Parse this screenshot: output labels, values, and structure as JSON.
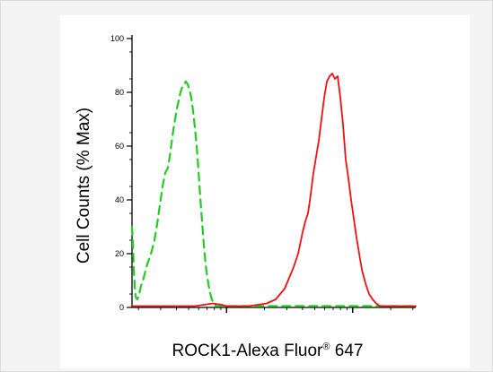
{
  "chart_data": {
    "type": "line",
    "title": "",
    "xlabel_main": "ROCK1-Alexa Fluor",
    "xlabel_reg": "®",
    "xlabel_tail": " 647",
    "ylabel": "Cell Counts (% Max)",
    "ylim": [
      0,
      100
    ],
    "yticks": [
      "0",
      "20",
      "40",
      "60",
      "80",
      "100"
    ],
    "x_scale": "log",
    "x_tick_labels": "none",
    "grid": false,
    "legend": "none",
    "series": [
      {
        "color": "#22cc22",
        "style": "dashed",
        "x": [
          0,
          1,
          2,
          3,
          4,
          6,
          8,
          10,
          13,
          16,
          19,
          22,
          25,
          28,
          31,
          34,
          37,
          40,
          42,
          44,
          46,
          48,
          50,
          52,
          54,
          56,
          58,
          60,
          62,
          64,
          66,
          68,
          70,
          72,
          74,
          76,
          78,
          80,
          82,
          84,
          86,
          88,
          90,
          92,
          94,
          96,
          98,
          100,
          103,
          106,
          110,
          115,
          120,
          130,
          140,
          150,
          200,
          250,
          300,
          316
        ],
        "y": [
          30,
          24,
          14,
          8,
          4,
          3,
          5,
          8,
          11,
          15,
          18,
          21,
          25,
          31,
          38,
          45,
          50,
          52,
          56,
          61,
          66,
          70,
          74,
          77,
          80,
          82,
          83,
          84,
          83,
          81,
          78,
          73,
          67,
          60,
          51,
          41,
          32,
          23,
          16,
          11,
          7,
          4,
          2,
          1,
          0.5,
          0.5,
          0.5,
          0.5,
          0.5,
          0.5,
          0.5,
          0.5,
          0.5,
          0.5,
          0.5,
          0.5,
          0.5,
          0.5,
          0.5,
          0.5
        ]
      },
      {
        "color": "#ee1111",
        "style": "solid",
        "x": [
          0,
          20,
          40,
          55,
          70,
          80,
          90,
          100,
          105,
          110,
          115,
          120,
          130,
          140,
          150,
          160,
          165,
          170,
          175,
          180,
          185,
          190,
          193,
          196,
          199,
          202,
          205,
          208,
          211,
          214,
          217,
          220,
          223,
          226,
          229,
          232,
          235,
          238,
          241,
          244,
          247,
          250,
          253,
          256,
          260,
          264,
          268,
          272,
          276,
          280,
          290,
          300,
          316
        ],
        "y": [
          0.5,
          0.5,
          0.5,
          0.5,
          0.5,
          1,
          1.5,
          1,
          0.5,
          0.5,
          0.5,
          0.5,
          0.5,
          1,
          1.5,
          3,
          5,
          7,
          11,
          15,
          20,
          28,
          32,
          35,
          42,
          50,
          56,
          62,
          70,
          78,
          84,
          86,
          87,
          85,
          86,
          78,
          68,
          55,
          48,
          40,
          33,
          26,
          20,
          14,
          9,
          5,
          3,
          1.5,
          0.5,
          0.5,
          0.5,
          0.5,
          0.5
        ]
      }
    ]
  }
}
